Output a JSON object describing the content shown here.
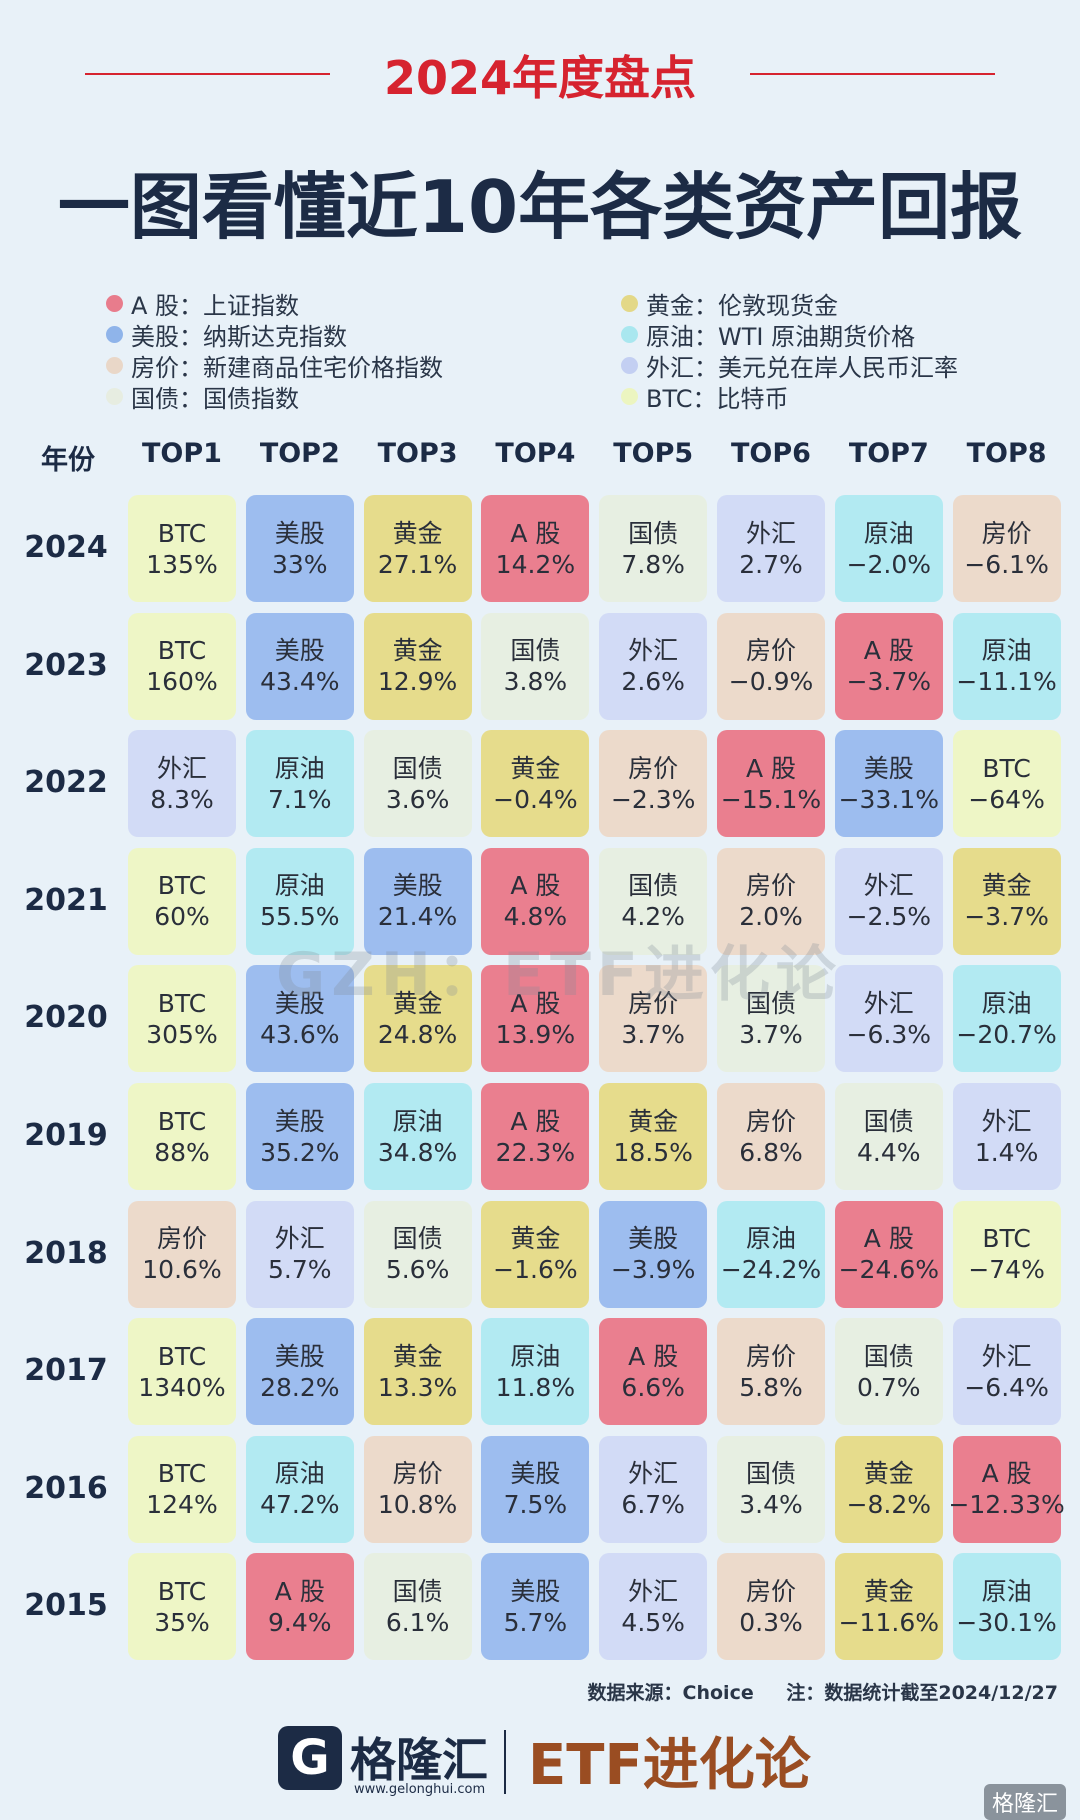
{
  "header": {
    "year_title": "2024年度盘点",
    "main_title": "一图看懂近10年各类资产回报"
  },
  "legend": [
    {
      "asset": "A股",
      "text": "A 股：上证指数",
      "color": "#e87c8c"
    },
    {
      "asset": "黄金",
      "text": "黄金：伦敦现货金",
      "color": "#e3d887"
    },
    {
      "asset": "美股",
      "text": "美股：纳斯达克指数",
      "color": "#8fb4ea"
    },
    {
      "asset": "原油",
      "text": "原油：WTI 原油期货价格",
      "color": "#a9e7ef"
    },
    {
      "asset": "房价",
      "text": "房价：新建商品住宅价格指数",
      "color": "#e9d7c8"
    },
    {
      "asset": "外汇",
      "text": "外汇：美元兑在岸人民币汇率",
      "color": "#c3cff2"
    },
    {
      "asset": "国债",
      "text": "国债：国债指数",
      "color": "#e7ede1"
    },
    {
      "asset": "BTC",
      "text": "BTC：比特币",
      "color": "#ecf5c0"
    }
  ],
  "table_header": {
    "year_label": "年份",
    "columns": [
      "TOP1",
      "TOP2",
      "TOP3",
      "TOP4",
      "TOP5",
      "TOP6",
      "TOP7",
      "TOP8"
    ]
  },
  "colors": {
    "BTC": "#eef6c6",
    "美股": "#9dbdef",
    "黄金": "#e6dc8c",
    "A股": "#ea7f8f",
    "国债": "#e7efe2",
    "外汇": "#d2dbf6",
    "原油": "#b2eaf2",
    "房价": "#ecdacb"
  },
  "chart_data": {
    "type": "table",
    "title": "一图看懂近10年各类资产回报",
    "columns": [
      "TOP1",
      "TOP2",
      "TOP3",
      "TOP4",
      "TOP5",
      "TOP6",
      "TOP7",
      "TOP8"
    ],
    "rows": [
      {
        "year": "2024",
        "cells": [
          {
            "asset": "BTC",
            "label": "BTC",
            "value": "135%"
          },
          {
            "asset": "美股",
            "label": "美股",
            "value": "33%"
          },
          {
            "asset": "黄金",
            "label": "黄金",
            "value": "27.1%"
          },
          {
            "asset": "A股",
            "label": "A 股",
            "value": "14.2%"
          },
          {
            "asset": "国债",
            "label": "国债",
            "value": "7.8%"
          },
          {
            "asset": "外汇",
            "label": "外汇",
            "value": "2.7%"
          },
          {
            "asset": "原油",
            "label": "原油",
            "value": "−2.0%"
          },
          {
            "asset": "房价",
            "label": "房价",
            "value": "−6.1%"
          }
        ]
      },
      {
        "year": "2023",
        "cells": [
          {
            "asset": "BTC",
            "label": "BTC",
            "value": "160%"
          },
          {
            "asset": "美股",
            "label": "美股",
            "value": "43.4%"
          },
          {
            "asset": "黄金",
            "label": "黄金",
            "value": "12.9%"
          },
          {
            "asset": "国债",
            "label": "国债",
            "value": "3.8%"
          },
          {
            "asset": "外汇",
            "label": "外汇",
            "value": "2.6%"
          },
          {
            "asset": "房价",
            "label": "房价",
            "value": "−0.9%"
          },
          {
            "asset": "A股",
            "label": "A 股",
            "value": "−3.7%"
          },
          {
            "asset": "原油",
            "label": "原油",
            "value": "−11.1%"
          }
        ]
      },
      {
        "year": "2022",
        "cells": [
          {
            "asset": "外汇",
            "label": "外汇",
            "value": "8.3%"
          },
          {
            "asset": "原油",
            "label": "原油",
            "value": "7.1%"
          },
          {
            "asset": "国债",
            "label": "国债",
            "value": "3.6%"
          },
          {
            "asset": "黄金",
            "label": "黄金",
            "value": "−0.4%"
          },
          {
            "asset": "房价",
            "label": "房价",
            "value": "−2.3%"
          },
          {
            "asset": "A股",
            "label": "A 股",
            "value": "−15.1%"
          },
          {
            "asset": "美股",
            "label": "美股",
            "value": "−33.1%"
          },
          {
            "asset": "BTC",
            "label": "BTC",
            "value": "−64%"
          }
        ]
      },
      {
        "year": "2021",
        "cells": [
          {
            "asset": "BTC",
            "label": "BTC",
            "value": "60%"
          },
          {
            "asset": "原油",
            "label": "原油",
            "value": "55.5%"
          },
          {
            "asset": "美股",
            "label": "美股",
            "value": "21.4%"
          },
          {
            "asset": "A股",
            "label": "A 股",
            "value": "4.8%"
          },
          {
            "asset": "国债",
            "label": "国债",
            "value": "4.2%"
          },
          {
            "asset": "房价",
            "label": "房价",
            "value": "2.0%"
          },
          {
            "asset": "外汇",
            "label": "外汇",
            "value": "−2.5%"
          },
          {
            "asset": "黄金",
            "label": "黄金",
            "value": "−3.7%"
          }
        ]
      },
      {
        "year": "2020",
        "cells": [
          {
            "asset": "BTC",
            "label": "BTC",
            "value": "305%"
          },
          {
            "asset": "美股",
            "label": "美股",
            "value": "43.6%"
          },
          {
            "asset": "黄金",
            "label": "黄金",
            "value": "24.8%"
          },
          {
            "asset": "A股",
            "label": "A 股",
            "value": "13.9%"
          },
          {
            "asset": "房价",
            "label": "房价",
            "value": "3.7%"
          },
          {
            "asset": "国债",
            "label": "国债",
            "value": "3.7%"
          },
          {
            "asset": "外汇",
            "label": "外汇",
            "value": "−6.3%"
          },
          {
            "asset": "原油",
            "label": "原油",
            "value": "−20.7%"
          }
        ]
      },
      {
        "year": "2019",
        "cells": [
          {
            "asset": "BTC",
            "label": "BTC",
            "value": "88%"
          },
          {
            "asset": "美股",
            "label": "美股",
            "value": "35.2%"
          },
          {
            "asset": "原油",
            "label": "原油",
            "value": "34.8%"
          },
          {
            "asset": "A股",
            "label": "A 股",
            "value": "22.3%"
          },
          {
            "asset": "黄金",
            "label": "黄金",
            "value": "18.5%"
          },
          {
            "asset": "房价",
            "label": "房价",
            "value": "6.8%"
          },
          {
            "asset": "国债",
            "label": "国债",
            "value": "4.4%"
          },
          {
            "asset": "外汇",
            "label": "外汇",
            "value": "1.4%"
          }
        ]
      },
      {
        "year": "2018",
        "cells": [
          {
            "asset": "房价",
            "label": "房价",
            "value": "10.6%"
          },
          {
            "asset": "外汇",
            "label": "外汇",
            "value": "5.7%"
          },
          {
            "asset": "国债",
            "label": "国债",
            "value": "5.6%"
          },
          {
            "asset": "黄金",
            "label": "黄金",
            "value": "−1.6%"
          },
          {
            "asset": "美股",
            "label": "美股",
            "value": "−3.9%"
          },
          {
            "asset": "原油",
            "label": "原油",
            "value": "−24.2%"
          },
          {
            "asset": "A股",
            "label": "A 股",
            "value": "−24.6%"
          },
          {
            "asset": "BTC",
            "label": "BTC",
            "value": "−74%"
          }
        ]
      },
      {
        "year": "2017",
        "cells": [
          {
            "asset": "BTC",
            "label": "BTC",
            "value": "1340%"
          },
          {
            "asset": "美股",
            "label": "美股",
            "value": "28.2%"
          },
          {
            "asset": "黄金",
            "label": "黄金",
            "value": "13.3%"
          },
          {
            "asset": "原油",
            "label": "原油",
            "value": "11.8%"
          },
          {
            "asset": "A股",
            "label": "A 股",
            "value": "6.6%"
          },
          {
            "asset": "房价",
            "label": "房价",
            "value": "5.8%"
          },
          {
            "asset": "国债",
            "label": "国债",
            "value": "0.7%"
          },
          {
            "asset": "外汇",
            "label": "外汇",
            "value": "−6.4%"
          }
        ]
      },
      {
        "year": "2016",
        "cells": [
          {
            "asset": "BTC",
            "label": "BTC",
            "value": "124%"
          },
          {
            "asset": "原油",
            "label": "原油",
            "value": "47.2%"
          },
          {
            "asset": "房价",
            "label": "房价",
            "value": "10.8%"
          },
          {
            "asset": "美股",
            "label": "美股",
            "value": "7.5%"
          },
          {
            "asset": "外汇",
            "label": "外汇",
            "value": "6.7%"
          },
          {
            "asset": "国债",
            "label": "国债",
            "value": "3.4%"
          },
          {
            "asset": "黄金",
            "label": "黄金",
            "value": "−8.2%"
          },
          {
            "asset": "A股",
            "label": "A 股",
            "value": "−12.33%"
          }
        ]
      },
      {
        "year": "2015",
        "cells": [
          {
            "asset": "BTC",
            "label": "BTC",
            "value": "35%"
          },
          {
            "asset": "A股",
            "label": "A 股",
            "value": "9.4%"
          },
          {
            "asset": "国债",
            "label": "国债",
            "value": "6.1%"
          },
          {
            "asset": "美股",
            "label": "美股",
            "value": "5.7%"
          },
          {
            "asset": "外汇",
            "label": "外汇",
            "value": "4.5%"
          },
          {
            "asset": "房价",
            "label": "房价",
            "value": "0.3%"
          },
          {
            "asset": "黄金",
            "label": "黄金",
            "value": "−11.6%"
          },
          {
            "asset": "原油",
            "label": "原油",
            "value": "−30.1%"
          }
        ]
      }
    ]
  },
  "watermark": "GZH：ETF进化论",
  "footnote": {
    "source": "数据来源：Choice",
    "note": "注：数据统计截至2024/12/27"
  },
  "footer": {
    "logo_letter": "G",
    "brand": "格隆汇",
    "url": "www.gelonghui.com",
    "etf_brand": "ETF进化论",
    "corner_mark": "格隆汇"
  }
}
